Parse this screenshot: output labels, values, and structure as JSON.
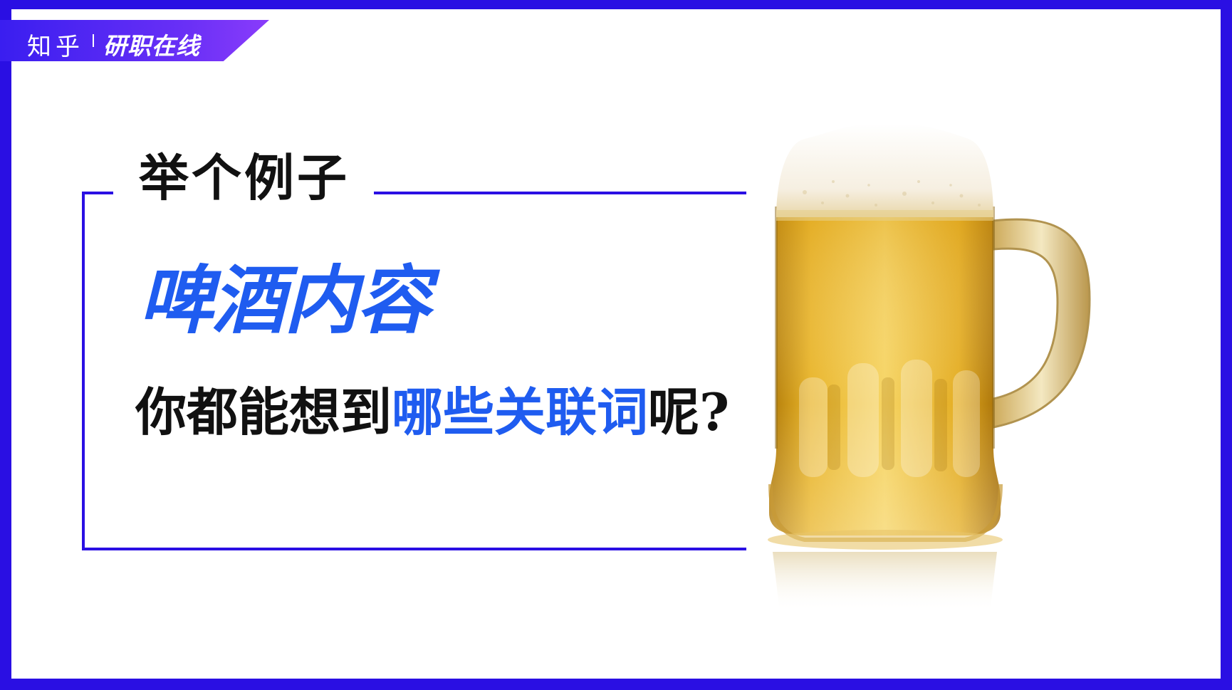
{
  "brand": {
    "zhihu": "知乎",
    "column": "研职在线"
  },
  "slide": {
    "heading": "举个例子",
    "topic": "啤酒内容",
    "question": {
      "part1": "你都能想到",
      "part2": "哪些关联词",
      "part3": "呢?"
    }
  },
  "image": {
    "subject": "beer-mug"
  },
  "colors": {
    "frame": "#2a0fe3",
    "accent_blue": "#1f5cf0",
    "text_dark": "#111111"
  }
}
